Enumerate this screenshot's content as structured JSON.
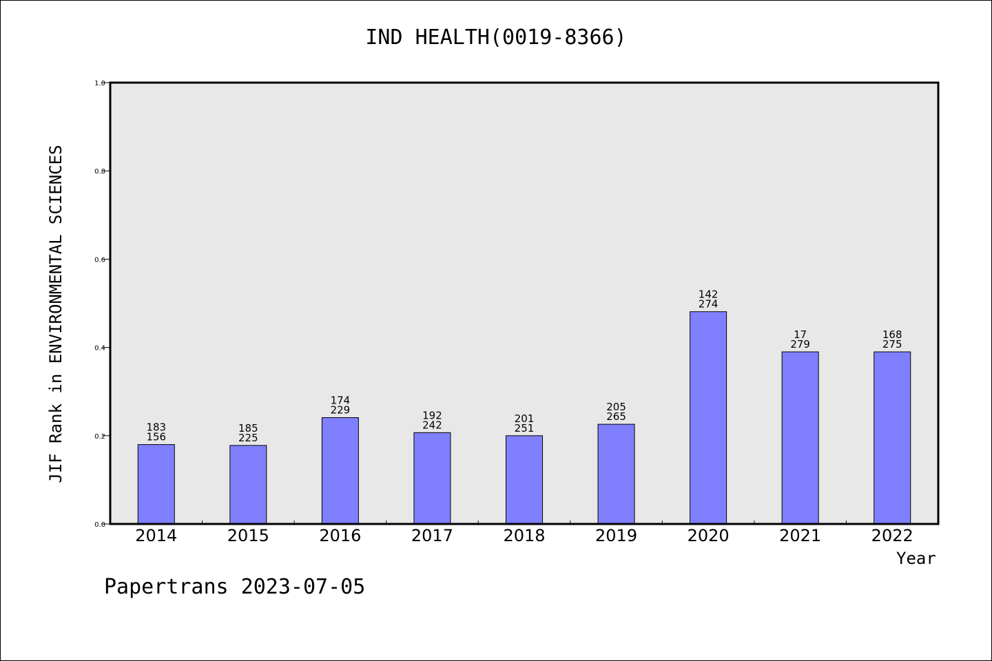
{
  "chart_data": {
    "type": "bar",
    "title": "IND HEALTH(0019-8366)",
    "xlabel": "Year",
    "ylabel": "JIF Rank in ENVIRONMENTAL SCIENCES",
    "ylim": [
      0,
      1.0
    ],
    "yticks": [
      "0.0",
      "0.2",
      "0.4",
      "0.6",
      "0.8",
      "1.0"
    ],
    "categories": [
      "2014",
      "2015",
      "2016",
      "2017",
      "2018",
      "2019",
      "2020",
      "2021",
      "2022"
    ],
    "values": [
      0.18,
      0.178,
      0.241,
      0.207,
      0.2,
      0.226,
      0.481,
      0.39,
      0.39
    ],
    "labels_top": [
      "183",
      "185",
      "174",
      "192",
      "201",
      "205",
      "142",
      "17",
      "168"
    ],
    "labels_bottom": [
      "156",
      "225",
      "229",
      "242",
      "251",
      "265",
      "274",
      "279",
      "275"
    ],
    "bar_color": "#8080ff",
    "plot_bg": "#e8e8e8",
    "grid": false
  },
  "footer": "Papertrans 2023-07-05"
}
